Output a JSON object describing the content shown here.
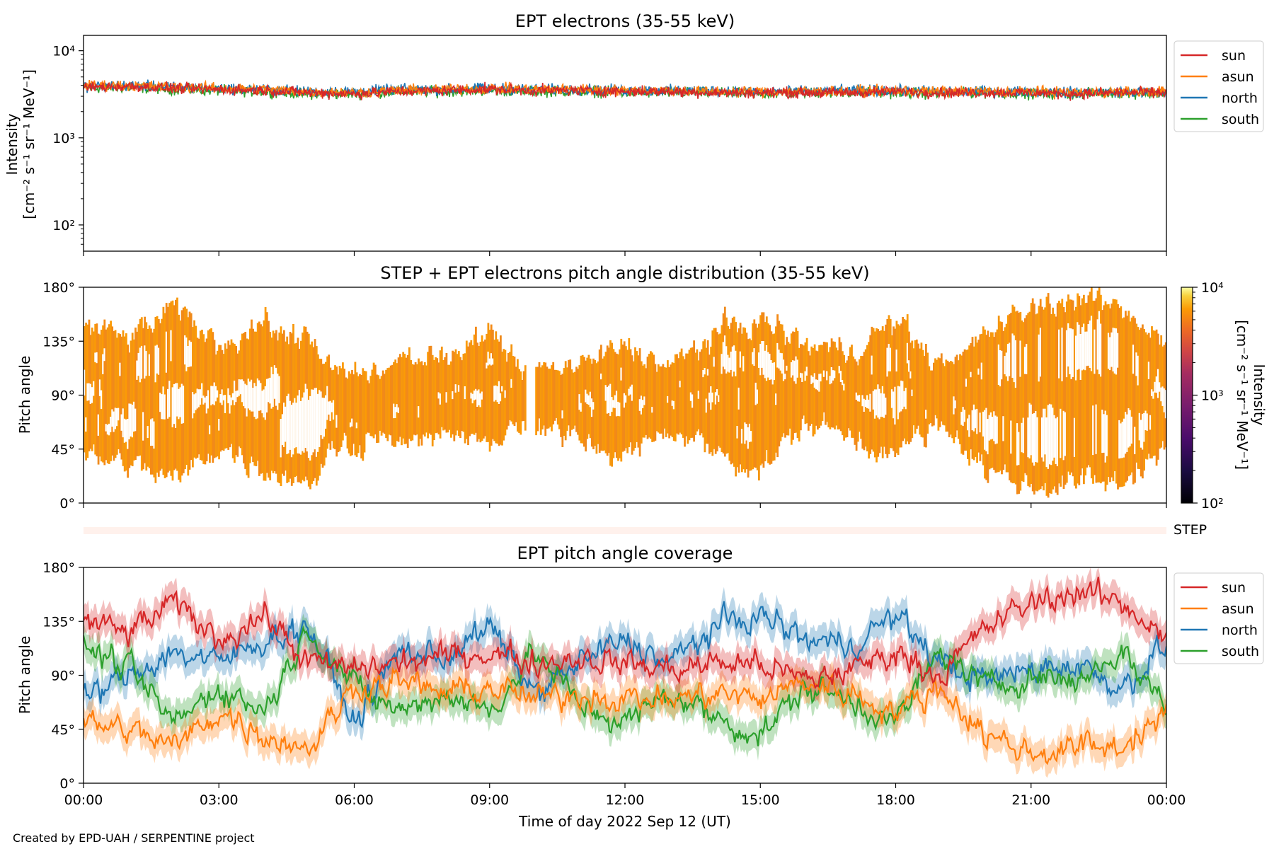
{
  "credit": "Created by EPD-UAH / SERPENTINE project",
  "xaxis": {
    "label": "Time of day 2022 Sep 12 (UT)",
    "ticks": [
      "00:00",
      "03:00",
      "06:00",
      "09:00",
      "12:00",
      "15:00",
      "18:00",
      "21:00",
      "00:00"
    ],
    "range_hours": [
      0,
      24
    ]
  },
  "legend_entries": [
    "sun",
    "asun",
    "north",
    "south"
  ],
  "colors": {
    "sun": "#d62728",
    "asun": "#ff7f0e",
    "north": "#1f77b4",
    "south": "#2ca02c",
    "step_bar": "#fff1ec"
  },
  "chart_data": [
    {
      "type": "line",
      "title": "EPT electrons (35-55 keV)",
      "ylabel_line1": "Intensity",
      "ylabel_line2": "[cm⁻² s⁻¹ sr⁻¹ MeV⁻¹]",
      "yscale": "log",
      "ylim": [
        50,
        15000
      ],
      "yticks": [
        {
          "value": 100,
          "label": "10²"
        },
        {
          "value": 1000,
          "label": "10³"
        },
        {
          "value": 10000,
          "label": "10⁴"
        }
      ],
      "legend": "outside-right",
      "x": [
        0,
        1,
        2,
        3,
        4,
        5,
        6,
        7,
        8,
        9,
        10,
        11,
        12,
        13,
        14,
        15,
        16,
        17,
        18,
        19,
        20,
        21,
        22,
        23,
        24
      ],
      "series": [
        {
          "name": "sun",
          "values": [
            3800,
            3900,
            3700,
            3600,
            3500,
            3300,
            3200,
            3400,
            3500,
            3600,
            3500,
            3500,
            3400,
            3400,
            3300,
            3300,
            3300,
            3300,
            3400,
            3300,
            3300,
            3300,
            3200,
            3300,
            3300
          ]
        },
        {
          "name": "asun",
          "values": [
            4000,
            4000,
            3800,
            3700,
            3600,
            3400,
            3300,
            3500,
            3600,
            3700,
            3600,
            3600,
            3500,
            3500,
            3400,
            3400,
            3400,
            3400,
            3500,
            3400,
            3400,
            3400,
            3300,
            3400,
            3400
          ]
        },
        {
          "name": "north",
          "values": [
            3900,
            4000,
            3800,
            3700,
            3600,
            3400,
            3400,
            3600,
            3600,
            3700,
            3600,
            3600,
            3500,
            3500,
            3500,
            3400,
            3400,
            3500,
            3500,
            3400,
            3400,
            3400,
            3300,
            3400,
            3300
          ]
        },
        {
          "name": "south",
          "values": [
            3700,
            3800,
            3600,
            3500,
            3400,
            3200,
            3200,
            3400,
            3400,
            3500,
            3400,
            3400,
            3300,
            3300,
            3300,
            3200,
            3300,
            3300,
            3300,
            3200,
            3300,
            3200,
            3200,
            3300,
            3200
          ]
        }
      ]
    },
    {
      "type": "heatmap",
      "title": "STEP + EPT electrons pitch angle distribution (35-55 keV)",
      "ylabel": "Pitch angle",
      "ylim": [
        0,
        180
      ],
      "yticks": [
        "0°",
        "45°",
        "90°",
        "135°",
        "180°"
      ],
      "colorbar": {
        "label_line1": "Intensity",
        "label_line2": "[cm⁻² s⁻¹ sr⁻¹ MeV⁻¹]",
        "scale": "log",
        "range": [
          100,
          10000
        ],
        "ticks": [
          {
            "value": 100,
            "label": "10²"
          },
          {
            "value": 1000,
            "label": "10³"
          },
          {
            "value": 10000,
            "label": "10⁴"
          }
        ],
        "colormap": "inferno"
      },
      "gap_hours": [
        9.8,
        10.0
      ],
      "step_label": "STEP"
    },
    {
      "type": "line",
      "title": "EPT pitch angle coverage",
      "ylabel": "Pitch angle",
      "ylim": [
        0,
        180
      ],
      "yticks": [
        "0°",
        "45°",
        "90°",
        "135°",
        "180°"
      ],
      "legend": "outside-right",
      "x": [
        0,
        1,
        2,
        3,
        4,
        5,
        6,
        7,
        8,
        9,
        10,
        11,
        12,
        13,
        14,
        15,
        16,
        17,
        18,
        19,
        20,
        21,
        22,
        23,
        24
      ],
      "series": [
        {
          "name": "sun",
          "values": [
            135,
            125,
            150,
            120,
            140,
            100,
            95,
            100,
            105,
            110,
            100,
            105,
            100,
            95,
            100,
            100,
            85,
            95,
            110,
            90,
            130,
            150,
            160,
            150,
            125
          ]
        },
        {
          "name": "asun",
          "values": [
            50,
            45,
            30,
            60,
            40,
            30,
            80,
            85,
            75,
            80,
            70,
            75,
            70,
            70,
            75,
            70,
            85,
            75,
            60,
            80,
            40,
            25,
            30,
            30,
            60
          ]
        },
        {
          "name": "north",
          "values": [
            70,
            90,
            110,
            100,
            120,
            130,
            50,
            110,
            105,
            130,
            75,
            100,
            120,
            100,
            130,
            140,
            120,
            115,
            140,
            100,
            85,
            95,
            100,
            80,
            115
          ]
        },
        {
          "name": "south",
          "values": [
            115,
            95,
            50,
            80,
            60,
            130,
            80,
            60,
            75,
            60,
            110,
            65,
            50,
            75,
            55,
            40,
            80,
            70,
            50,
            110,
            80,
            90,
            85,
            110,
            65
          ]
        }
      ],
      "bands": true
    }
  ]
}
